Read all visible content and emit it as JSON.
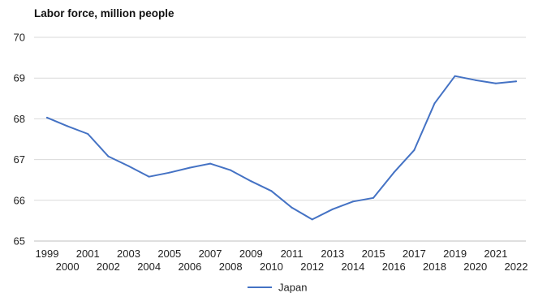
{
  "chart_data": {
    "type": "line",
    "title": "Labor force, million people",
    "xlabel": "",
    "ylabel": "",
    "x": [
      1999,
      2000,
      2001,
      2002,
      2003,
      2004,
      2005,
      2006,
      2007,
      2008,
      2009,
      2010,
      2011,
      2012,
      2013,
      2014,
      2015,
      2016,
      2017,
      2018,
      2019,
      2020,
      2021,
      2022
    ],
    "x_tick_labels": [
      "1999",
      "2000",
      "2001",
      "2002",
      "2003",
      "2004",
      "2005",
      "2006",
      "2007",
      "2008",
      "2009",
      "2010",
      "2011",
      "2012",
      "2013",
      "2014",
      "2015",
      "2016",
      "2017",
      "2018",
      "2019",
      "2020",
      "2021",
      "2022"
    ],
    "y_ticks": [
      65,
      66,
      67,
      68,
      69,
      70
    ],
    "ylim": [
      65,
      70
    ],
    "grid": true,
    "legend_position": "bottom-center",
    "series": [
      {
        "name": "Japan",
        "color": "#4472c4",
        "values": [
          68.03,
          67.82,
          67.63,
          67.08,
          66.84,
          66.58,
          66.68,
          66.8,
          66.9,
          66.74,
          66.47,
          66.23,
          65.82,
          65.53,
          65.78,
          65.97,
          66.06,
          66.68,
          67.23,
          68.38,
          69.05,
          68.95,
          68.87,
          68.92
        ]
      }
    ]
  }
}
